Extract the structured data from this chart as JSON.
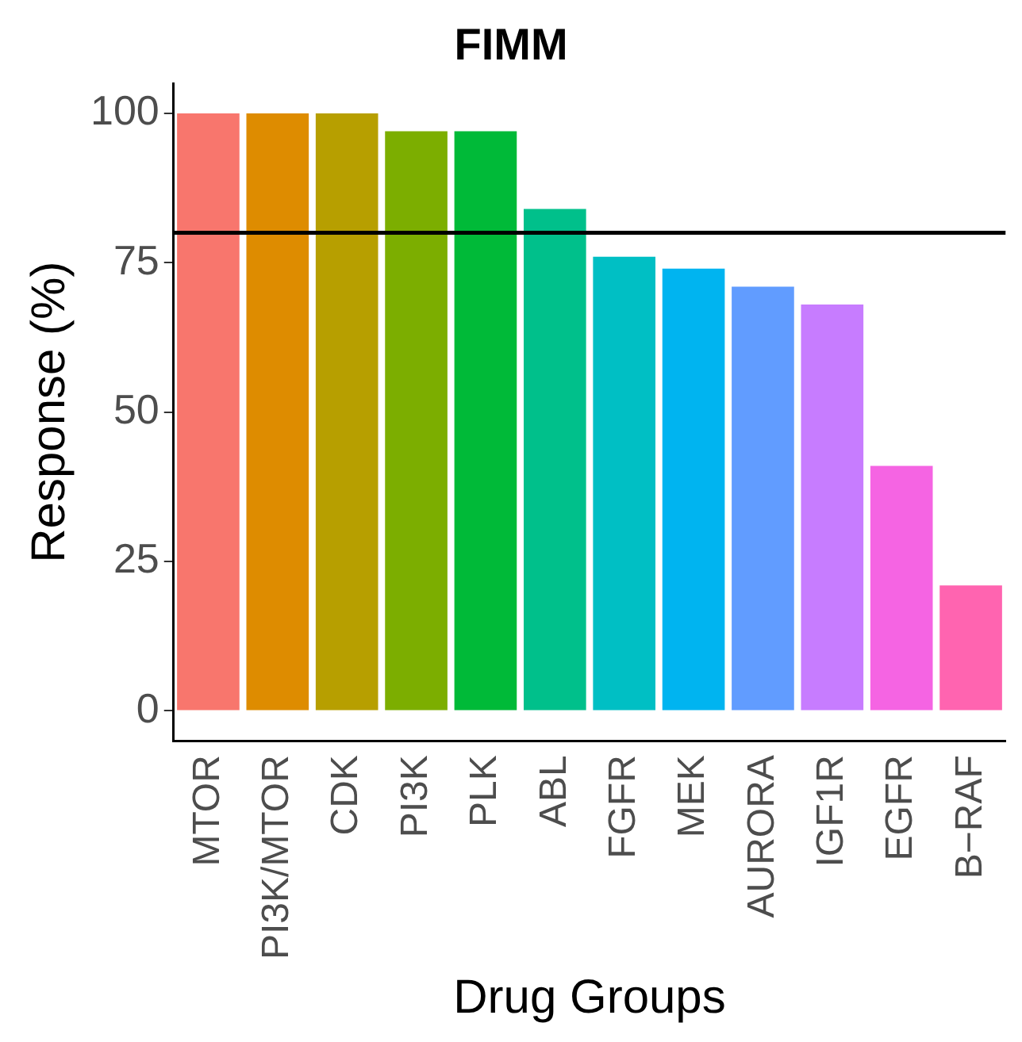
{
  "chart_data": {
    "type": "bar",
    "title": "FIMM",
    "xlabel": "Drug Groups",
    "ylabel": "Response (%)",
    "categories": [
      "MTOR",
      "PI3K/MTOR",
      "CDK",
      "PI3K",
      "PLK",
      "ABL",
      "FGFR",
      "MEK",
      "AURORA",
      "IGF1R",
      "EGFR",
      "B−RAF"
    ],
    "values": [
      100,
      100,
      100,
      97,
      97,
      84,
      76,
      74,
      71,
      68,
      41,
      21
    ],
    "colors": [
      "#f8766d",
      "#de8c00",
      "#b79f00",
      "#7cae00",
      "#00ba38",
      "#00c08b",
      "#00bfc4",
      "#00b4f0",
      "#619cff",
      "#c77cff",
      "#f564e3",
      "#ff64b0"
    ],
    "ylim": [
      -5,
      105
    ],
    "yticks": [
      0,
      25,
      50,
      75,
      100
    ],
    "grid": false,
    "legend": false,
    "ref_lines": [
      {
        "axis": "y",
        "value": 80,
        "color": "#000000"
      }
    ]
  }
}
